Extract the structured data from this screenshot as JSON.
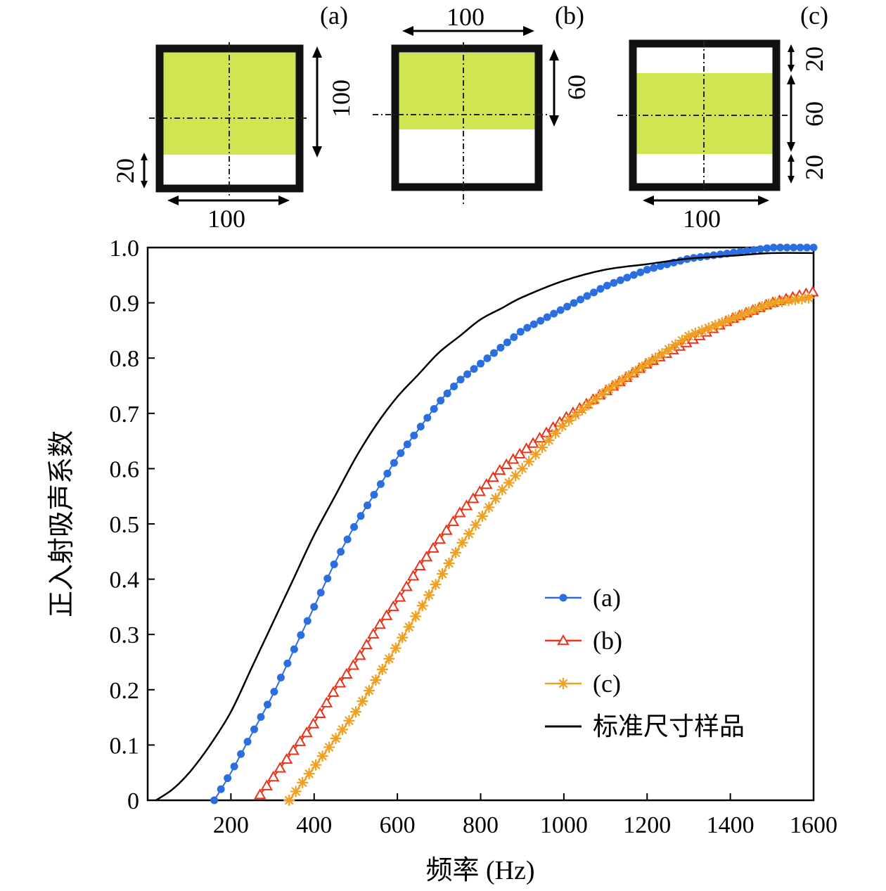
{
  "diagrams": [
    {
      "label": "(a)",
      "dims": [
        "100",
        "20",
        "100"
      ]
    },
    {
      "label": "(b)",
      "dims": [
        "100",
        "60"
      ]
    },
    {
      "label": "(c)",
      "dims": [
        "20",
        "60",
        "20",
        "100"
      ]
    }
  ],
  "colors": {
    "fill": "#d1e452",
    "series_a": "#2a6ee0",
    "series_b": "#e8331a",
    "series_c": "#f0a020",
    "standard": "#000000"
  },
  "chart_data": {
    "type": "line",
    "title": "",
    "xlabel": "频率 (Hz)",
    "ylabel": "正入射吸声系数",
    "xlim": [
      0,
      1600
    ],
    "ylim": [
      0,
      1.0
    ],
    "x_ticks": [
      "200",
      "400",
      "600",
      "800",
      "1000",
      "1200",
      "1400",
      "1600"
    ],
    "y_ticks": [
      "0",
      "0.1",
      "0.2",
      "0.3",
      "0.4",
      "0.5",
      "0.6",
      "0.7",
      "0.8",
      "0.9",
      "1.0"
    ],
    "legend_position": "lower-right",
    "series": [
      {
        "name": "(a)",
        "marker": "circle",
        "x": [
          160,
          200,
          250,
          300,
          350,
          400,
          450,
          500,
          550,
          600,
          650,
          700,
          750,
          800,
          850,
          900,
          950,
          1000,
          1100,
          1200,
          1300,
          1400,
          1500,
          1600
        ],
        "y": [
          0.0,
          0.05,
          0.12,
          0.19,
          0.27,
          0.35,
          0.43,
          0.5,
          0.56,
          0.62,
          0.67,
          0.72,
          0.76,
          0.79,
          0.82,
          0.85,
          0.87,
          0.89,
          0.93,
          0.96,
          0.98,
          0.99,
          1.0,
          1.0
        ]
      },
      {
        "name": "(b)",
        "marker": "triangle",
        "x": [
          270,
          300,
          350,
          400,
          450,
          500,
          550,
          600,
          650,
          700,
          750,
          800,
          850,
          900,
          1000,
          1100,
          1200,
          1300,
          1400,
          1500,
          1600
        ],
        "y": [
          0.01,
          0.04,
          0.09,
          0.14,
          0.2,
          0.25,
          0.31,
          0.36,
          0.42,
          0.47,
          0.52,
          0.56,
          0.6,
          0.63,
          0.69,
          0.74,
          0.79,
          0.83,
          0.87,
          0.9,
          0.92
        ]
      },
      {
        "name": "(c)",
        "marker": "asterisk",
        "x": [
          340,
          400,
          450,
          500,
          550,
          600,
          650,
          700,
          750,
          800,
          850,
          900,
          1000,
          1100,
          1200,
          1300,
          1400,
          1500,
          1600
        ],
        "y": [
          0.0,
          0.06,
          0.11,
          0.16,
          0.22,
          0.28,
          0.34,
          0.4,
          0.46,
          0.51,
          0.56,
          0.6,
          0.68,
          0.74,
          0.79,
          0.84,
          0.87,
          0.9,
          0.91
        ]
      },
      {
        "name": "标准尺寸样品",
        "marker": "none",
        "x": [
          20,
          60,
          100,
          150,
          200,
          250,
          300,
          350,
          400,
          450,
          500,
          550,
          600,
          650,
          700,
          750,
          800,
          850,
          900,
          1000,
          1100,
          1200,
          1300,
          1400,
          1500,
          1600
        ],
        "y": [
          0.0,
          0.02,
          0.05,
          0.1,
          0.16,
          0.24,
          0.32,
          0.4,
          0.48,
          0.55,
          0.62,
          0.68,
          0.73,
          0.77,
          0.81,
          0.84,
          0.87,
          0.89,
          0.91,
          0.94,
          0.96,
          0.97,
          0.98,
          0.985,
          0.99,
          0.99
        ]
      }
    ]
  }
}
